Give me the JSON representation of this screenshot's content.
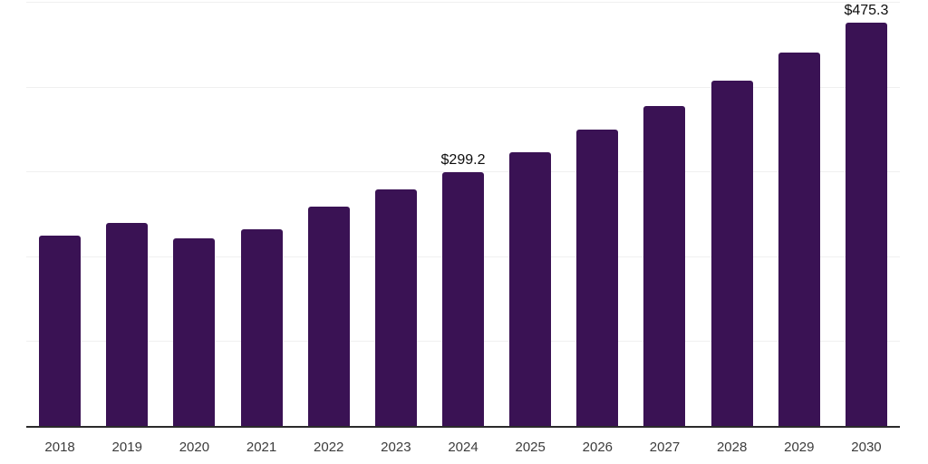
{
  "chart_data": {
    "type": "bar",
    "title": "",
    "xlabel": "",
    "ylabel": "",
    "categories": [
      "2018",
      "2019",
      "2020",
      "2021",
      "2022",
      "2023",
      "2024",
      "2025",
      "2026",
      "2027",
      "2028",
      "2029",
      "2030"
    ],
    "values": [
      224,
      239,
      221,
      232,
      259,
      279,
      299.2,
      323.1,
      349.1,
      377.1,
      407.3,
      439.9,
      475.3
    ],
    "data_labels": [
      {
        "category": "2024",
        "text": "$299.2"
      },
      {
        "category": "2030",
        "text": "$475.3"
      }
    ],
    "ylim": [
      0,
      500
    ],
    "gridline_values": [
      100,
      200,
      300,
      400,
      500
    ],
    "y_tick_labels_shown": false,
    "legend": "none",
    "colors": {
      "bar": "#3a1254",
      "gridline": "#f0f0f0",
      "axis_line": "#2b2b2b",
      "value_label": "#0d0d0d",
      "tick_label": "#3c3c3c",
      "background": "#ffffff"
    }
  }
}
